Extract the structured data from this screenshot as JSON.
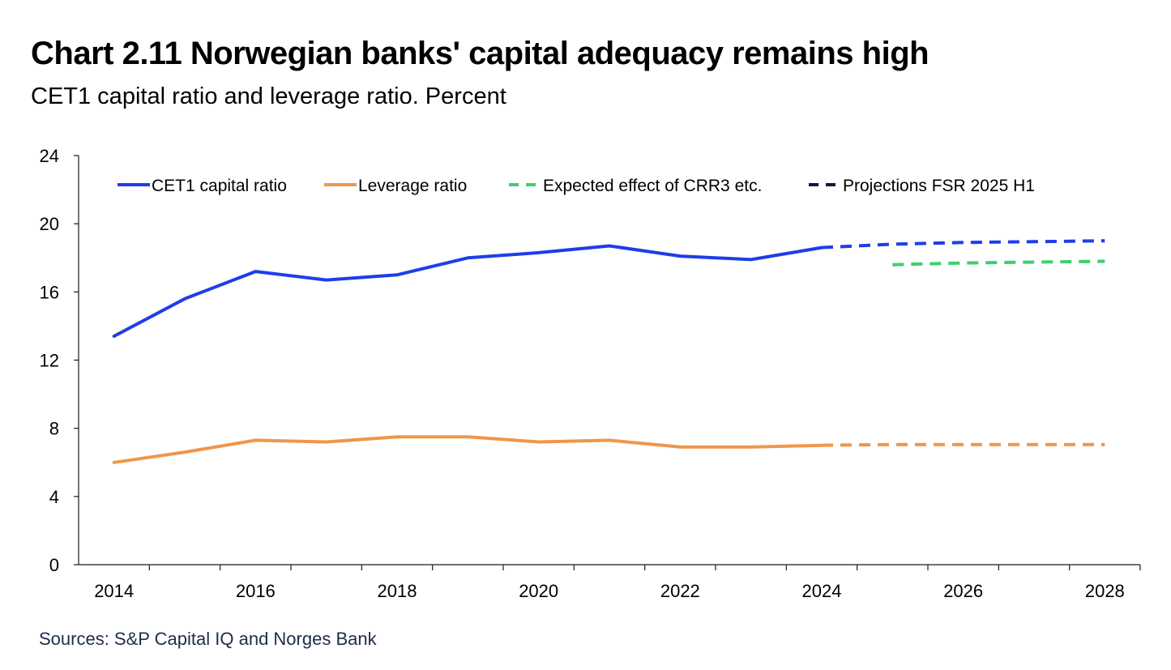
{
  "title": "Chart 2.11 Norwegian banks' capital adequacy remains high",
  "subtitle": "CET1 capital ratio and leverage ratio. Percent",
  "source": "Sources: S&P Capital IQ and Norges Bank",
  "chart_data": {
    "type": "line",
    "title": "Chart 2.11 Norwegian banks' capital adequacy remains high",
    "subtitle": "CET1 capital ratio and leverage ratio. Percent",
    "xlabel": "",
    "ylabel": "Percent",
    "xlim": [
      2013.5,
      2028.5
    ],
    "ylim": [
      0,
      24
    ],
    "yticks": [
      0,
      4,
      8,
      12,
      16,
      20,
      24
    ],
    "xticks": [
      2014,
      2016,
      2018,
      2020,
      2022,
      2024,
      2026,
      2028
    ],
    "grid": false,
    "legend_position": "top",
    "series": [
      {
        "name": "CET1 capital ratio",
        "in_legend": true,
        "color": "#1f3de8",
        "dash": "solid",
        "x": [
          2014,
          2015,
          2016,
          2017,
          2018,
          2019,
          2020,
          2021,
          2022,
          2023,
          2024
        ],
        "values": [
          13.4,
          15.6,
          17.2,
          16.7,
          17.0,
          18.0,
          18.3,
          18.7,
          18.1,
          17.9,
          18.6
        ]
      },
      {
        "name": "Leverage ratio",
        "in_legend": true,
        "color": "#f0964a",
        "dash": "solid",
        "x": [
          2014,
          2015,
          2016,
          2017,
          2018,
          2019,
          2020,
          2021,
          2022,
          2023,
          2024
        ],
        "values": [
          6.0,
          6.6,
          7.3,
          7.2,
          7.5,
          7.5,
          7.2,
          7.3,
          6.9,
          6.9,
          7.0
        ]
      },
      {
        "name": "Expected effect of CRR3 etc.",
        "in_legend": true,
        "color": "#3ecf6e",
        "dash": "dashed",
        "x": [
          2025,
          2026,
          2027,
          2028
        ],
        "values": [
          17.6,
          17.7,
          17.75,
          17.8
        ]
      },
      {
        "name": "Projections FSR 2025 H1",
        "in_legend": true,
        "color": "#0b1a3f",
        "dash": "dashed",
        "x": [
          2024,
          2025,
          2026,
          2027,
          2028
        ],
        "values": [
          18.6,
          18.8,
          18.9,
          18.95,
          19.0
        ]
      },
      {
        "name": "CET1 capital ratio projection",
        "in_legend": false,
        "color": "#1f3de8",
        "dash": "dashed",
        "x": [
          2024,
          2025,
          2026,
          2027,
          2028
        ],
        "values": [
          18.6,
          18.8,
          18.9,
          18.95,
          19.0
        ]
      },
      {
        "name": "Leverage ratio projection",
        "in_legend": false,
        "color": "#f0964a",
        "dash": "dashed",
        "x": [
          2024,
          2025,
          2026,
          2027,
          2028
        ],
        "values": [
          7.0,
          7.05,
          7.05,
          7.05,
          7.05
        ]
      }
    ]
  }
}
